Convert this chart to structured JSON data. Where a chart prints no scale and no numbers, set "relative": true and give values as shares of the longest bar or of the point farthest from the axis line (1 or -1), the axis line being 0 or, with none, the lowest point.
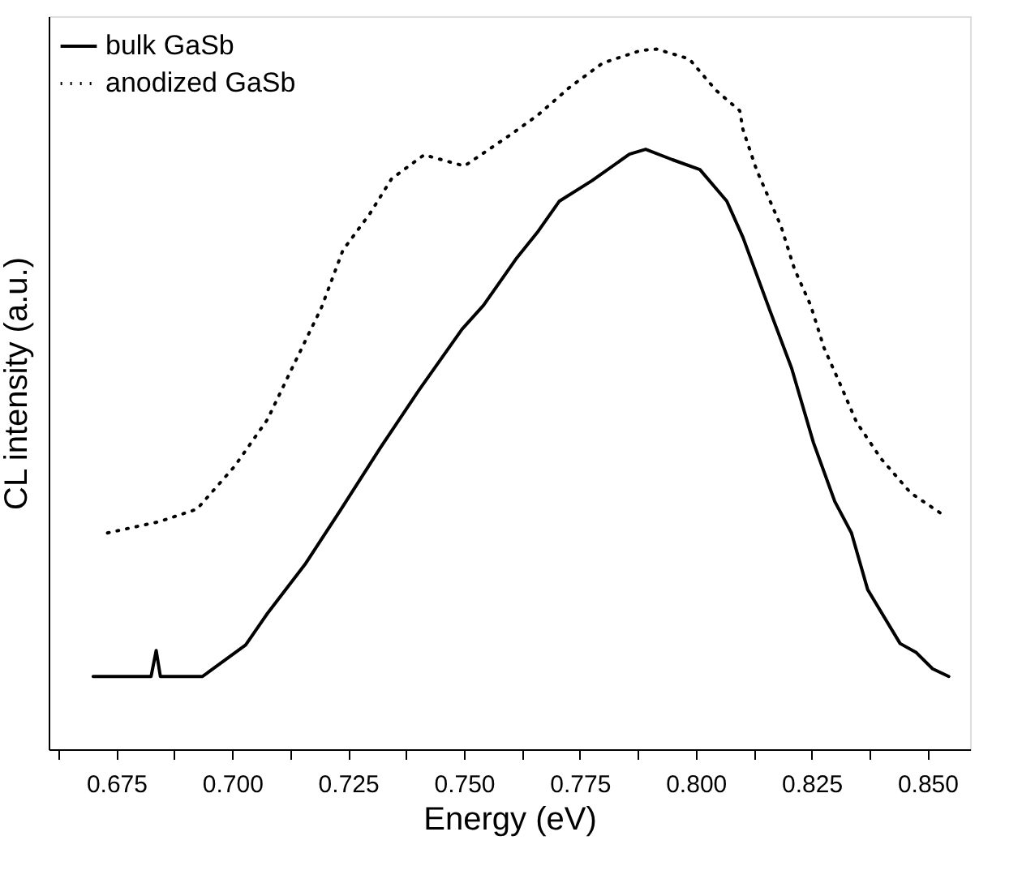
{
  "chart_data": {
    "type": "line",
    "relative": true,
    "xlabel": "Energy (eV)",
    "ylabel": "CL intensity (a.u.)",
    "xlim": [
      0.6604,
      0.8592
    ],
    "xticks": [
      {
        "value": 0.6625,
        "label": null
      },
      0.675,
      {
        "value": 0.6875,
        "label": null
      },
      {
        "value": 0.7,
        "label": "0.700"
      },
      {
        "value": 0.7125,
        "label": null
      },
      0.725,
      {
        "value": 0.7375,
        "label": null
      },
      {
        "value": 0.75,
        "label": "0.750"
      },
      {
        "value": 0.7625,
        "label": null
      },
      0.775,
      {
        "value": 0.7875,
        "label": null
      },
      {
        "value": 0.8,
        "label": "0.800"
      },
      {
        "value": 0.8125,
        "label": null
      },
      0.825,
      {
        "value": 0.8375,
        "label": null
      },
      {
        "value": 0.85,
        "label": "0.850"
      }
    ],
    "legend": "top left",
    "grid": false,
    "marker": "none",
    "series": [
      {
        "name": "bulk GaSb",
        "color": "#000000",
        "line_style": "solid",
        "x": [
          0.67,
          0.6825,
          0.6836,
          0.6845,
          0.6936,
          0.7029,
          0.7076,
          0.7157,
          0.7233,
          0.732,
          0.7402,
          0.7496,
          0.7542,
          0.7612,
          0.7658,
          0.7706,
          0.7776,
          0.7857,
          0.7892,
          0.795,
          0.8009,
          0.8067,
          0.8102,
          0.8161,
          0.8207,
          0.8254,
          0.83,
          0.8336,
          0.8371,
          0.8441,
          0.8476,
          0.8511,
          0.8546
        ],
        "values": [
          0.104,
          0.104,
          0.141,
          0.104,
          0.104,
          0.149,
          0.194,
          0.264,
          0.341,
          0.431,
          0.512,
          0.6,
          0.634,
          0.7,
          0.738,
          0.783,
          0.812,
          0.85,
          0.857,
          0.842,
          0.828,
          0.783,
          0.731,
          0.625,
          0.544,
          0.438,
          0.354,
          0.309,
          0.228,
          0.151,
          0.138,
          0.115,
          0.104
        ]
      },
      {
        "name": "anodized GaSb",
        "color": "#000000",
        "line_style": "dotted",
        "x": [
          0.6731,
          0.6842,
          0.6924,
          0.7005,
          0.7076,
          0.7134,
          0.7192,
          0.7239,
          0.7297,
          0.7344,
          0.7414,
          0.7501,
          0.7601,
          0.7658,
          0.7729,
          0.7799,
          0.7881,
          0.7916,
          0.7986,
          0.8044,
          0.8095,
          0.8102,
          0.8131,
          0.8184,
          0.8213,
          0.8248,
          0.8277,
          0.8312,
          0.8347,
          0.84,
          0.8464,
          0.854
        ],
        "values": [
          0.309,
          0.325,
          0.343,
          0.404,
          0.471,
          0.551,
          0.63,
          0.713,
          0.765,
          0.815,
          0.849,
          0.833,
          0.878,
          0.905,
          0.946,
          0.98,
          0.998,
          1.0,
          0.986,
          0.941,
          0.912,
          0.885,
          0.828,
          0.747,
          0.686,
          0.634,
          0.573,
          0.521,
          0.467,
          0.415,
          0.366,
          0.332
        ]
      }
    ]
  }
}
